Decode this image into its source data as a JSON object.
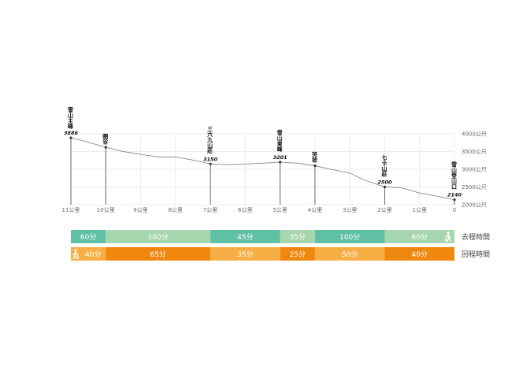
{
  "chart_data": {
    "type": "line",
    "x_unit": "公里",
    "x_ticks": [
      {
        "v": 11,
        "label": "11公里"
      },
      {
        "v": 10,
        "label": "10公里"
      },
      {
        "v": 9,
        "label": "9公里"
      },
      {
        "v": 8,
        "label": "8公里"
      },
      {
        "v": 7,
        "label": "7公里"
      },
      {
        "v": 6,
        "label": "6公里"
      },
      {
        "v": 5,
        "label": "5公里"
      },
      {
        "v": 4,
        "label": "4公里"
      },
      {
        "v": 3,
        "label": "3公里"
      },
      {
        "v": 2,
        "label": "2公里"
      },
      {
        "v": 1,
        "label": "1公里"
      },
      {
        "v": 0,
        "label": "0"
      }
    ],
    "y_ticks": [
      {
        "v": 4000,
        "label": "4000公尺"
      },
      {
        "v": 3500,
        "label": "3500公尺"
      },
      {
        "v": 3000,
        "label": "3000公尺"
      },
      {
        "v": 2500,
        "label": "2500公尺"
      },
      {
        "v": 2000,
        "label": "2000公尺"
      }
    ],
    "xlim": [
      11,
      0
    ],
    "ylim": [
      2000,
      4000
    ],
    "profile": [
      [
        11,
        3886
      ],
      [
        10.6,
        3790
      ],
      [
        10.0,
        3620
      ],
      [
        9.5,
        3500
      ],
      [
        9.0,
        3420
      ],
      [
        8.5,
        3350
      ],
      [
        8.0,
        3350
      ],
      [
        7.5,
        3260
      ],
      [
        7.0,
        3150
      ],
      [
        6.5,
        3130
      ],
      [
        6.0,
        3150
      ],
      [
        5.5,
        3170
      ],
      [
        5.0,
        3201
      ],
      [
        4.5,
        3170
      ],
      [
        4.0,
        3100
      ],
      [
        3.5,
        2990
      ],
      [
        3.0,
        2890
      ],
      [
        2.6,
        2700
      ],
      [
        2.0,
        2500
      ],
      [
        1.5,
        2470
      ],
      [
        1.0,
        2330
      ],
      [
        0.5,
        2240
      ],
      [
        0,
        2140
      ]
    ],
    "points": [
      {
        "km": 11,
        "name": "雪山主峰",
        "elev": "3886"
      },
      {
        "km": 10,
        "name": "圈谷",
        "elev": ""
      },
      {
        "km": 7,
        "name": "三六九山莊",
        "elev": "3150"
      },
      {
        "km": 5,
        "name": "雪山東峰",
        "elev": "3201"
      },
      {
        "km": 4,
        "name": "哭坡",
        "elev": ""
      },
      {
        "km": 2,
        "name": "七卡山莊",
        "elev": "2500"
      },
      {
        "km": 0,
        "name": "雪山登山口",
        "elev": "2140"
      }
    ]
  },
  "timeline": {
    "outbound": {
      "label": "去程時間",
      "icon": "hiker-icon",
      "color_dark": "#5fc0a3",
      "color_light": "#a6d6ad",
      "segments": [
        {
          "from": 11,
          "to": 10,
          "label": "60分",
          "tone": "dark"
        },
        {
          "from": 10,
          "to": 7,
          "label": "100分",
          "tone": "light"
        },
        {
          "from": 7,
          "to": 5,
          "label": "45分",
          "tone": "dark"
        },
        {
          "from": 5,
          "to": 4,
          "label": "35分",
          "tone": "light"
        },
        {
          "from": 4,
          "to": 2,
          "label": "100分",
          "tone": "dark"
        },
        {
          "from": 2,
          "to": 0,
          "label": "60分",
          "tone": "light"
        }
      ]
    },
    "return": {
      "label": "回程時間",
      "icon": "hiker-icon",
      "color_dark": "#f0870f",
      "color_light": "#f7ae45",
      "segments": [
        {
          "from": 11,
          "to": 10,
          "label": "40分",
          "tone": "light"
        },
        {
          "from": 10,
          "to": 7,
          "label": "65分",
          "tone": "dark"
        },
        {
          "from": 7,
          "to": 5,
          "label": "35分",
          "tone": "light"
        },
        {
          "from": 5,
          "to": 4,
          "label": "25分",
          "tone": "dark"
        },
        {
          "from": 4,
          "to": 2,
          "label": "50分",
          "tone": "light"
        },
        {
          "from": 2,
          "to": 0,
          "label": "40分",
          "tone": "dark"
        }
      ]
    }
  }
}
